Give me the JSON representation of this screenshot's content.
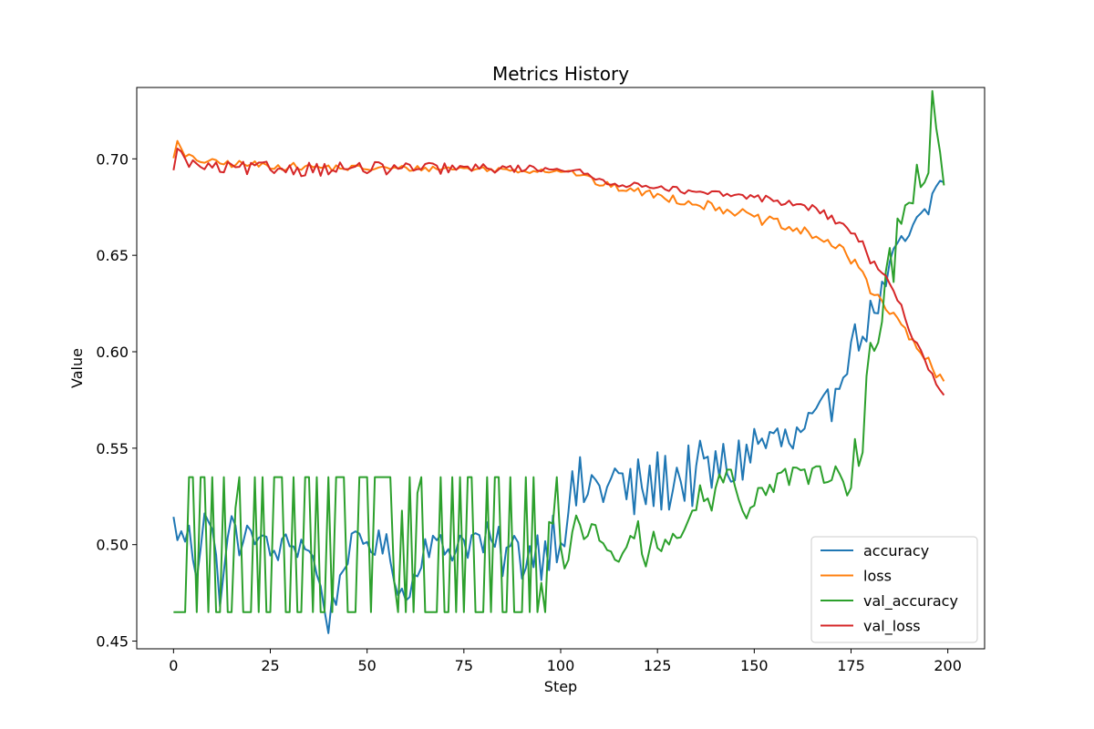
{
  "chart_data": {
    "type": "line",
    "title": "Metrics History",
    "xlabel": "Step",
    "ylabel": "Value",
    "xlim": [
      -9.5,
      209.5
    ],
    "ylim": [
      0.446,
      0.737
    ],
    "xticks": [
      0,
      25,
      50,
      75,
      100,
      125,
      150,
      175,
      200
    ],
    "yticks": [
      0.45,
      0.5,
      0.55,
      0.6,
      0.65,
      0.7
    ],
    "xtick_labels": [
      "0",
      "25",
      "50",
      "75",
      "100",
      "125",
      "150",
      "175",
      "200"
    ],
    "ytick_labels": [
      "0.45",
      "0.50",
      "0.55",
      "0.60",
      "0.65",
      "0.70"
    ],
    "grid": false,
    "legend_position": "lower-right",
    "series": [
      {
        "name": "accuracy",
        "color": "#1f77b4",
        "keypoints": [
          [
            0,
            0.511
          ],
          [
            2,
            0.503
          ],
          [
            4,
            0.505
          ],
          [
            6,
            0.486
          ],
          [
            8,
            0.52
          ],
          [
            10,
            0.505
          ],
          [
            12,
            0.475
          ],
          [
            15,
            0.512
          ],
          [
            18,
            0.496
          ],
          [
            20,
            0.51
          ],
          [
            25,
            0.495
          ],
          [
            30,
            0.5
          ],
          [
            35,
            0.5
          ],
          [
            40,
            0.46
          ],
          [
            45,
            0.497
          ],
          [
            50,
            0.502
          ],
          [
            55,
            0.498
          ],
          [
            60,
            0.47
          ],
          [
            65,
            0.502
          ],
          [
            70,
            0.497
          ],
          [
            75,
            0.503
          ],
          [
            80,
            0.501
          ],
          [
            85,
            0.495
          ],
          [
            90,
            0.495
          ],
          [
            95,
            0.498
          ],
          [
            100,
            0.51
          ],
          [
            102,
            0.52
          ],
          [
            105,
            0.528
          ],
          [
            110,
            0.53
          ],
          [
            115,
            0.533
          ],
          [
            118,
            0.525
          ],
          [
            120,
            0.528
          ],
          [
            125,
            0.532
          ],
          [
            130,
            0.535
          ],
          [
            135,
            0.536
          ],
          [
            140,
            0.538
          ],
          [
            145,
            0.541
          ],
          [
            150,
            0.552
          ],
          [
            155,
            0.554
          ],
          [
            160,
            0.552
          ],
          [
            165,
            0.56
          ],
          [
            168,
            0.566
          ],
          [
            170,
            0.575
          ],
          [
            173,
            0.595
          ],
          [
            175,
            0.603
          ],
          [
            178,
            0.61
          ],
          [
            180,
            0.618
          ],
          [
            183,
            0.63
          ],
          [
            185,
            0.642
          ],
          [
            188,
            0.655
          ],
          [
            190,
            0.66
          ],
          [
            193,
            0.668
          ],
          [
            195,
            0.672
          ],
          [
            197,
            0.688
          ],
          [
            199,
            0.686
          ]
        ],
        "noise": [
          0.008,
          0.008,
          0.008,
          0.018,
          0.018,
          0.012,
          0.006
        ]
      },
      {
        "name": "loss",
        "color": "#ff7f0e",
        "keypoints": [
          [
            0,
            0.702
          ],
          [
            1,
            0.708
          ],
          [
            3,
            0.701
          ],
          [
            10,
            0.698
          ],
          [
            20,
            0.697
          ],
          [
            30,
            0.696
          ],
          [
            50,
            0.695
          ],
          [
            75,
            0.695
          ],
          [
            90,
            0.694
          ],
          [
            100,
            0.694
          ],
          [
            105,
            0.692
          ],
          [
            110,
            0.687
          ],
          [
            115,
            0.685
          ],
          [
            120,
            0.683
          ],
          [
            125,
            0.681
          ],
          [
            130,
            0.679
          ],
          [
            135,
            0.677
          ],
          [
            140,
            0.675
          ],
          [
            145,
            0.673
          ],
          [
            150,
            0.669
          ],
          [
            155,
            0.667
          ],
          [
            160,
            0.663
          ],
          [
            165,
            0.661
          ],
          [
            170,
            0.656
          ],
          [
            175,
            0.648
          ],
          [
            178,
            0.641
          ],
          [
            180,
            0.633
          ],
          [
            183,
            0.627
          ],
          [
            185,
            0.62
          ],
          [
            188,
            0.614
          ],
          [
            190,
            0.607
          ],
          [
            193,
            0.6
          ],
          [
            195,
            0.594
          ],
          [
            197,
            0.587
          ],
          [
            199,
            0.585
          ]
        ],
        "noise": [
          0.002,
          0.002,
          0.0015,
          0.0015,
          0.0025,
          0.003,
          0.003
        ]
      },
      {
        "name": "val_accuracy",
        "color": "#2ca02c",
        "keypoints": [
          [
            100,
            0.5
          ],
          [
            101,
            0.49
          ],
          [
            102,
            0.49
          ],
          [
            104,
            0.515
          ],
          [
            106,
            0.505
          ],
          [
            108,
            0.51
          ],
          [
            110,
            0.505
          ],
          [
            112,
            0.495
          ],
          [
            114,
            0.49
          ],
          [
            116,
            0.5
          ],
          [
            118,
            0.505
          ],
          [
            120,
            0.51
          ],
          [
            122,
            0.49
          ],
          [
            124,
            0.505
          ],
          [
            126,
            0.5
          ],
          [
            128,
            0.505
          ],
          [
            130,
            0.505
          ],
          [
            132,
            0.51
          ],
          [
            134,
            0.515
          ],
          [
            136,
            0.53
          ],
          [
            138,
            0.52
          ],
          [
            140,
            0.525
          ],
          [
            142,
            0.535
          ],
          [
            144,
            0.54
          ],
          [
            146,
            0.52
          ],
          [
            148,
            0.52
          ],
          [
            150,
            0.525
          ],
          [
            152,
            0.525
          ],
          [
            154,
            0.528
          ],
          [
            156,
            0.54
          ],
          [
            158,
            0.54
          ],
          [
            160,
            0.535
          ],
          [
            162,
            0.54
          ],
          [
            164,
            0.535
          ],
          [
            166,
            0.535
          ],
          [
            168,
            0.53
          ],
          [
            170,
            0.525
          ],
          [
            172,
            0.545
          ],
          [
            174,
            0.535
          ],
          [
            176,
            0.545
          ],
          [
            178,
            0.558
          ],
          [
            180,
            0.6
          ],
          [
            182,
            0.615
          ],
          [
            184,
            0.63
          ],
          [
            186,
            0.65
          ],
          [
            188,
            0.665
          ],
          [
            190,
            0.675
          ],
          [
            192,
            0.705
          ],
          [
            194,
            0.69
          ],
          [
            196,
            0.725
          ],
          [
            198,
            0.71
          ],
          [
            199,
            0.69
          ]
        ],
        "noise": [
          0,
          0,
          0.004,
          0.004,
          0.006,
          0.008,
          0.02
        ],
        "alternating_early": {
          "until_step": 100,
          "high": 0.535,
          "low": 0.465
        }
      },
      {
        "name": "val_loss",
        "color": "#d62728",
        "keypoints": [
          [
            0,
            0.692
          ],
          [
            1,
            0.708
          ],
          [
            3,
            0.698
          ],
          [
            10,
            0.695
          ],
          [
            20,
            0.695
          ],
          [
            30,
            0.695
          ],
          [
            50,
            0.695
          ],
          [
            75,
            0.695
          ],
          [
            90,
            0.695
          ],
          [
            100,
            0.695
          ],
          [
            105,
            0.693
          ],
          [
            110,
            0.689
          ],
          [
            115,
            0.687
          ],
          [
            120,
            0.686
          ],
          [
            125,
            0.686
          ],
          [
            130,
            0.684
          ],
          [
            135,
            0.682
          ],
          [
            140,
            0.682
          ],
          [
            145,
            0.681
          ],
          [
            150,
            0.68
          ],
          [
            155,
            0.679
          ],
          [
            160,
            0.676
          ],
          [
            165,
            0.675
          ],
          [
            170,
            0.669
          ],
          [
            175,
            0.663
          ],
          [
            178,
            0.655
          ],
          [
            180,
            0.647
          ],
          [
            183,
            0.641
          ],
          [
            185,
            0.634
          ],
          [
            188,
            0.622
          ],
          [
            190,
            0.613
          ],
          [
            193,
            0.6
          ],
          [
            195,
            0.593
          ],
          [
            197,
            0.582
          ],
          [
            199,
            0.58
          ]
        ],
        "noise": [
          0.003,
          0.004,
          0.003,
          0.0015,
          0.0015,
          0.002,
          0.003
        ]
      }
    ]
  }
}
